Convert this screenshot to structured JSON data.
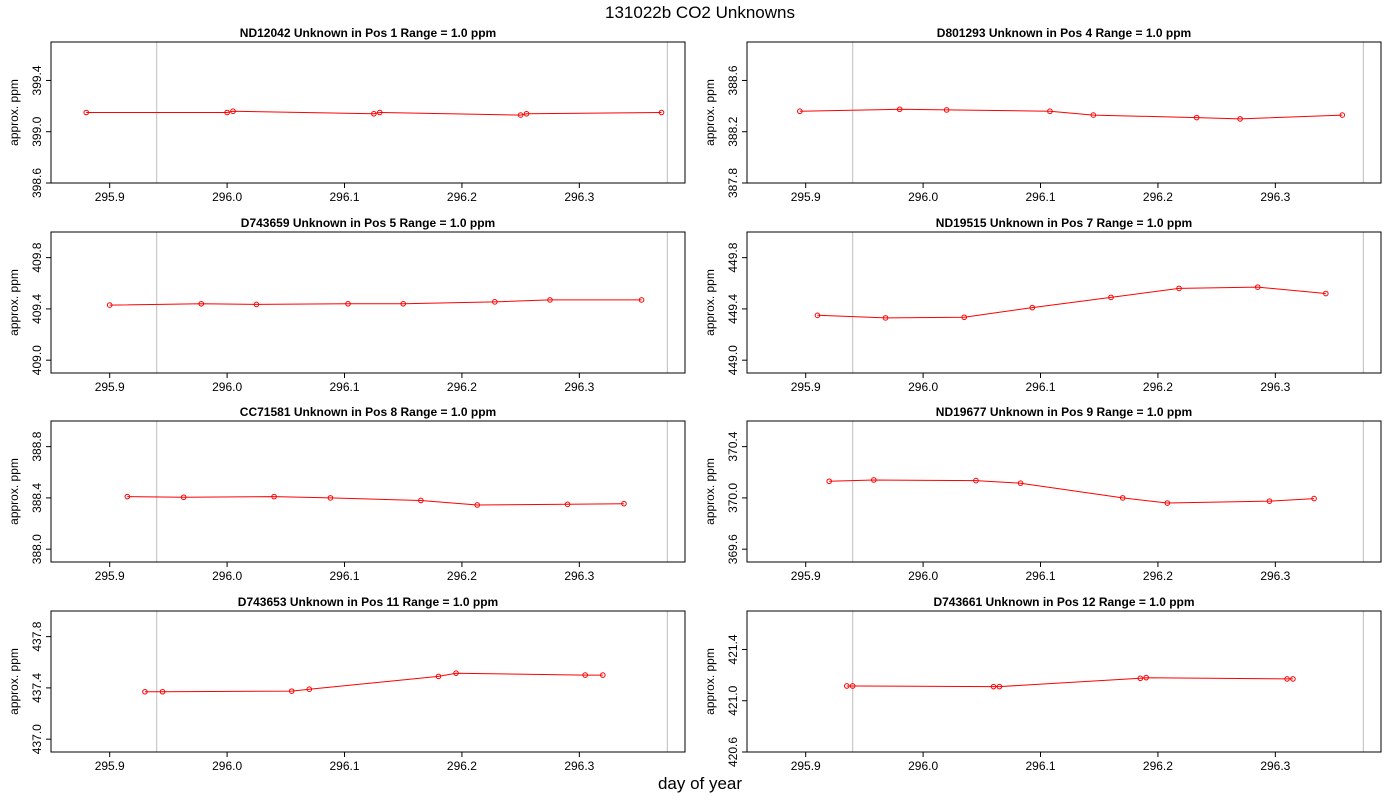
{
  "title": "131022b  CO2 Unknowns",
  "xlabel": "day of year",
  "chart_data": [
    {
      "type": "line",
      "title": "ND12042    Unknown in Pos 1         Range = 1.0 ppm",
      "ylabel": "approx. ppm",
      "xlim": [
        295.85,
        296.39
      ],
      "ylim": [
        398.6,
        399.7
      ],
      "xticks": [
        295.9,
        296.0,
        296.1,
        296.2,
        296.3
      ],
      "xtick_labels": [
        "295.9",
        "296.0",
        "296.1",
        "296.2",
        "296.3"
      ],
      "yticks": [
        398.6,
        399.0,
        399.4
      ],
      "ytick_labels": [
        "398.6",
        "399.0",
        "399.4"
      ],
      "vlines": [
        295.94,
        296.375
      ],
      "x": [
        295.88,
        296.0,
        296.005,
        296.125,
        296.13,
        296.25,
        296.255,
        296.37
      ],
      "y": [
        399.15,
        399.15,
        399.16,
        399.14,
        399.15,
        399.13,
        399.14,
        399.15
      ]
    },
    {
      "type": "line",
      "title": "D801293    Unknown in Pos 4         Range = 1.0 ppm",
      "ylabel": "approx. ppm",
      "xlim": [
        295.85,
        296.39
      ],
      "ylim": [
        387.8,
        388.9
      ],
      "xticks": [
        295.9,
        296.0,
        296.1,
        296.2,
        296.3
      ],
      "xtick_labels": [
        "295.9",
        "296.0",
        "296.1",
        "296.2",
        "296.3"
      ],
      "yticks": [
        387.8,
        388.2,
        388.6
      ],
      "ytick_labels": [
        "387.8",
        "388.2",
        "388.6"
      ],
      "vlines": [
        295.94,
        296.375
      ],
      "x": [
        295.895,
        295.98,
        296.02,
        296.108,
        296.145,
        296.233,
        296.27,
        296.357
      ],
      "y": [
        388.36,
        388.375,
        388.37,
        388.36,
        388.33,
        388.31,
        388.3,
        388.33
      ]
    },
    {
      "type": "line",
      "title": "D743659    Unknown in Pos 5         Range = 1.0 ppm",
      "ylabel": "approx. ppm",
      "xlim": [
        295.85,
        296.39
      ],
      "ylim": [
        408.9,
        410.0
      ],
      "xticks": [
        295.9,
        296.0,
        296.1,
        296.2,
        296.3
      ],
      "xtick_labels": [
        "295.9",
        "296.0",
        "296.1",
        "296.2",
        "296.3"
      ],
      "yticks": [
        409.0,
        409.4,
        409.8
      ],
      "ytick_labels": [
        "409.0",
        "409.4",
        "409.8"
      ],
      "vlines": [
        295.94,
        296.375
      ],
      "x": [
        295.9,
        295.978,
        296.025,
        296.103,
        296.15,
        296.228,
        296.275,
        296.353
      ],
      "y": [
        409.43,
        409.44,
        409.435,
        409.44,
        409.44,
        409.455,
        409.47,
        409.47
      ]
    },
    {
      "type": "line",
      "title": "ND19515    Unknown in Pos 7         Range = 1.0 ppm",
      "ylabel": "approx. ppm",
      "xlim": [
        295.85,
        296.39
      ],
      "ylim": [
        448.9,
        450.0
      ],
      "xticks": [
        295.9,
        296.0,
        296.1,
        296.2,
        296.3
      ],
      "xtick_labels": [
        "295.9",
        "296.0",
        "296.1",
        "296.2",
        "296.3"
      ],
      "yticks": [
        449.0,
        449.4,
        449.8
      ],
      "ytick_labels": [
        "449.0",
        "449.4",
        "449.8"
      ],
      "vlines": [
        295.94,
        296.375
      ],
      "x": [
        295.91,
        295.968,
        296.035,
        296.093,
        296.16,
        296.218,
        296.285,
        296.343
      ],
      "y": [
        449.35,
        449.33,
        449.335,
        449.41,
        449.49,
        449.56,
        449.57,
        449.52
      ]
    },
    {
      "type": "line",
      "title": "CC71581    Unknown in Pos 8         Range = 1.0 ppm",
      "ylabel": "approx. ppm",
      "xlim": [
        295.85,
        296.39
      ],
      "ylim": [
        387.9,
        389.0
      ],
      "xticks": [
        295.9,
        296.0,
        296.1,
        296.2,
        296.3
      ],
      "xtick_labels": [
        "295.9",
        "296.0",
        "296.1",
        "296.2",
        "296.3"
      ],
      "yticks": [
        388.0,
        388.4,
        388.8
      ],
      "ytick_labels": [
        "388.0",
        "388.4",
        "388.8"
      ],
      "vlines": [
        295.94,
        296.375
      ],
      "x": [
        295.915,
        295.963,
        296.04,
        296.088,
        296.165,
        296.213,
        296.29,
        296.338
      ],
      "y": [
        388.41,
        388.405,
        388.41,
        388.4,
        388.38,
        388.345,
        388.35,
        388.355
      ]
    },
    {
      "type": "line",
      "title": "ND19677    Unknown in Pos 9         Range = 1.0 ppm",
      "ylabel": "approx. ppm",
      "xlim": [
        295.85,
        296.39
      ],
      "ylim": [
        369.5,
        370.6
      ],
      "xticks": [
        295.9,
        296.0,
        296.1,
        296.2,
        296.3
      ],
      "xtick_labels": [
        "295.9",
        "296.0",
        "296.1",
        "296.2",
        "296.3"
      ],
      "yticks": [
        369.6,
        370.0,
        370.4
      ],
      "ytick_labels": [
        "369.6",
        "370.0",
        "370.4"
      ],
      "vlines": [
        295.94,
        296.375
      ],
      "x": [
        295.92,
        295.958,
        296.045,
        296.083,
        296.17,
        296.208,
        296.295,
        296.333
      ],
      "y": [
        370.13,
        370.14,
        370.135,
        370.115,
        370.0,
        369.96,
        369.975,
        369.995
      ]
    },
    {
      "type": "line",
      "title": "D743653    Unknown in Pos 11         Range = 1.0 ppm",
      "ylabel": "approx. ppm",
      "xlim": [
        295.85,
        296.39
      ],
      "ylim": [
        436.9,
        438.0
      ],
      "xticks": [
        295.9,
        296.0,
        296.1,
        296.2,
        296.3
      ],
      "xtick_labels": [
        "295.9",
        "296.0",
        "296.1",
        "296.2",
        "296.3"
      ],
      "yticks": [
        437.0,
        437.4,
        437.8
      ],
      "ytick_labels": [
        "437.0",
        "437.4",
        "437.8"
      ],
      "vlines": [
        295.94,
        296.375
      ],
      "x": [
        295.93,
        295.945,
        296.055,
        296.07,
        296.18,
        296.195,
        296.305,
        296.32
      ],
      "y": [
        437.37,
        437.37,
        437.375,
        437.39,
        437.49,
        437.515,
        437.5,
        437.5
      ]
    },
    {
      "type": "line",
      "title": "D743661    Unknown in Pos 12         Range = 1.0 ppm",
      "ylabel": "approx. ppm",
      "xlim": [
        295.85,
        296.39
      ],
      "ylim": [
        420.6,
        421.7
      ],
      "xticks": [
        295.9,
        296.0,
        296.1,
        296.2,
        296.3
      ],
      "xtick_labels": [
        "295.9",
        "296.0",
        "296.1",
        "296.2",
        "296.3"
      ],
      "yticks": [
        420.6,
        421.0,
        421.4
      ],
      "ytick_labels": [
        "420.6",
        "421.0",
        "421.4"
      ],
      "vlines": [
        295.94,
        296.375
      ],
      "x": [
        295.935,
        295.94,
        296.06,
        296.065,
        296.185,
        296.19,
        296.31,
        296.315
      ],
      "y": [
        421.115,
        421.115,
        421.11,
        421.11,
        421.175,
        421.18,
        421.17,
        421.17
      ]
    }
  ],
  "colors": {
    "series": "#ff0000",
    "vline": "#c8c8c8",
    "frame": "#000000"
  }
}
